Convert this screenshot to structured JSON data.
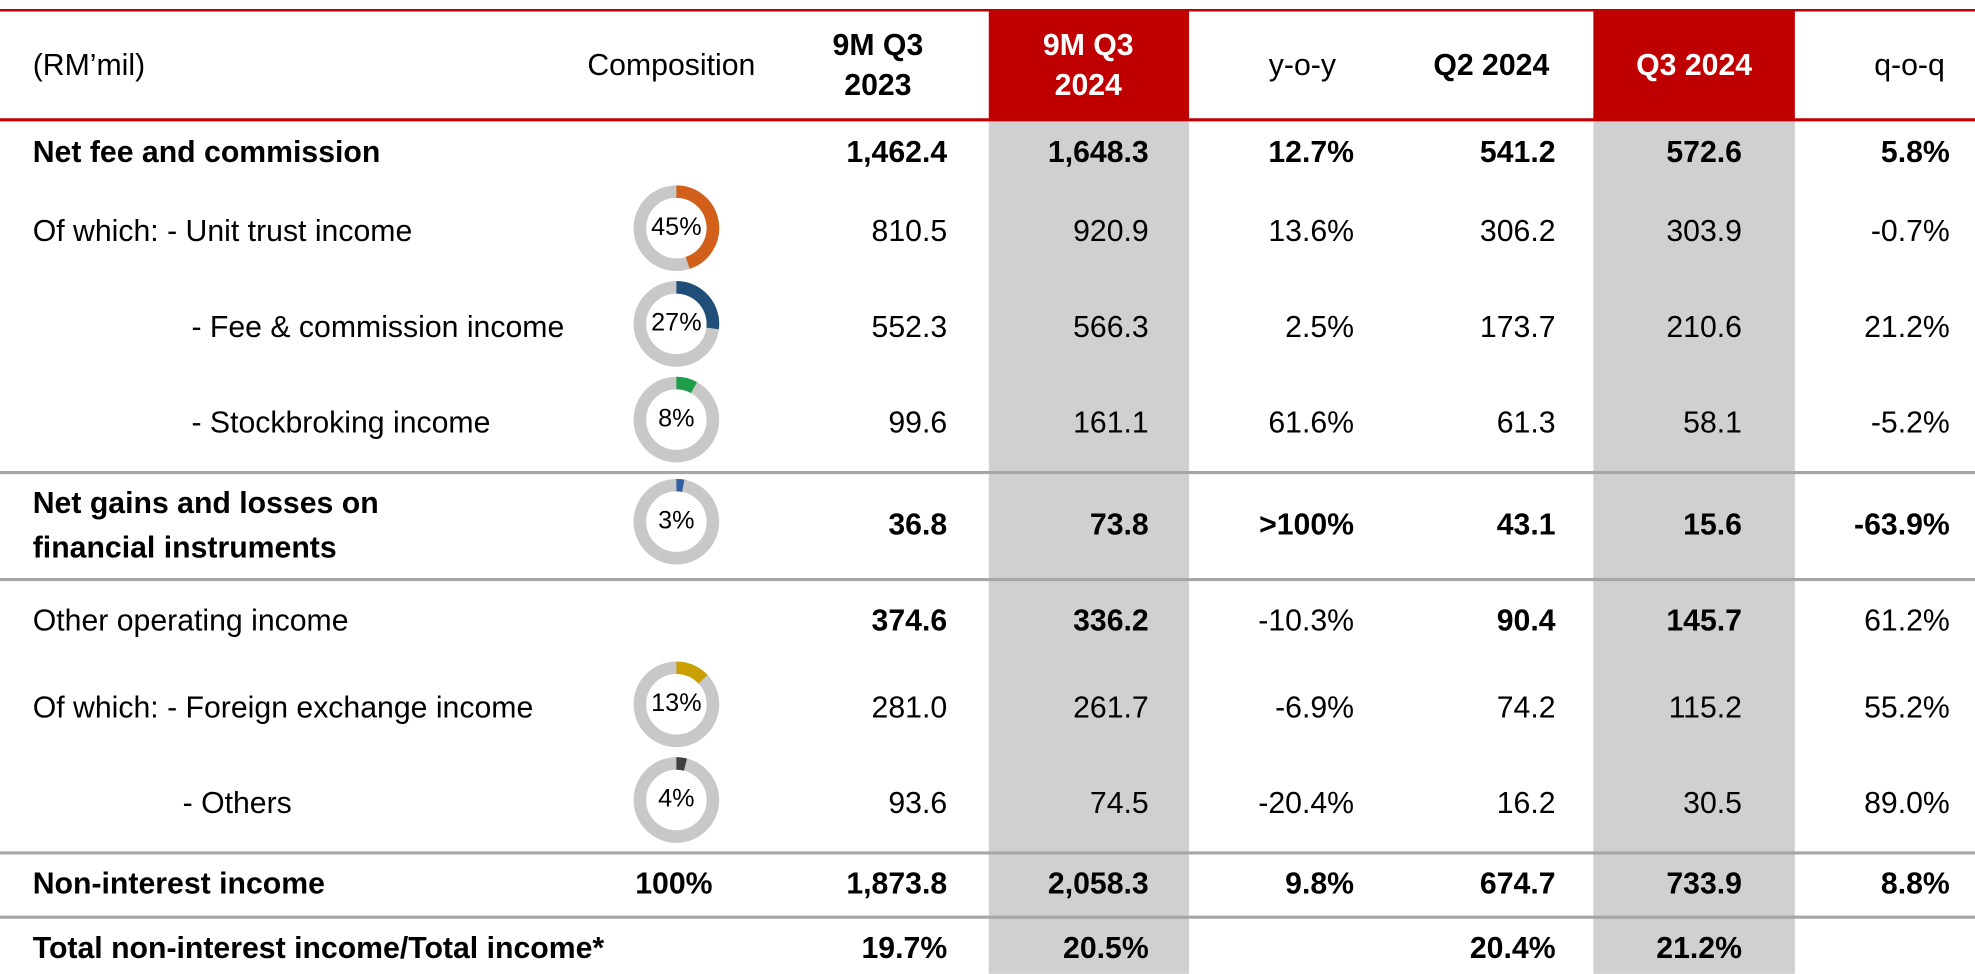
{
  "header": {
    "unit": "(RM’mil)",
    "composition": "Composition",
    "columns": [
      [
        "9M Q3",
        "2023"
      ],
      [
        "9M Q3",
        "2024"
      ],
      [
        "y-o-y"
      ],
      [
        "Q2 2024"
      ],
      [
        "Q3 2024"
      ],
      [
        "q-o-q"
      ]
    ]
  },
  "rows": [
    {
      "label": [
        "Net fee and commission"
      ],
      "values": [
        "1,462.4",
        "1,648.3",
        "12.7%",
        "541.2",
        "572.6",
        "5.8%"
      ]
    },
    {
      "label": [
        "Of which:  - Unit trust income"
      ],
      "composition": {
        "value": 45,
        "label": "45%",
        "color": "#d2601a"
      },
      "values": [
        "810.5",
        "920.9",
        "13.6%",
        "306.2",
        "303.9",
        "-0.7%"
      ]
    },
    {
      "label": [
        "- Fee & commission income"
      ],
      "composition": {
        "value": 27,
        "label": "27%",
        "color": "#1f4e79"
      },
      "values": [
        "552.3",
        "566.3",
        "2.5%",
        "173.7",
        "210.6",
        "21.2%"
      ]
    },
    {
      "label": [
        "- Stockbroking income"
      ],
      "composition": {
        "value": 8,
        "label": "8%",
        "color": "#1e9e4a"
      },
      "values": [
        "99.6",
        "161.1",
        "61.6%",
        "61.3",
        "58.1",
        "-5.2%"
      ]
    },
    {
      "label": [
        "Net gains and losses on",
        "financial instruments"
      ],
      "composition": {
        "value": 3,
        "label": "3%",
        "color": "#2e5f9e"
      },
      "values": [
        "36.8",
        "73.8",
        ">100%",
        "43.1",
        "15.6",
        "-63.9%"
      ]
    },
    {
      "label": [
        "Other operating income"
      ],
      "values": [
        "374.6",
        "336.2",
        "-10.3%",
        "90.4",
        "145.7",
        "61.2%"
      ]
    },
    {
      "label": [
        "Of which: - Foreign exchange income"
      ],
      "composition": {
        "value": 13,
        "label": "13%",
        "color": "#c9a000"
      },
      "values": [
        "281.0",
        "261.7",
        "-6.9%",
        "74.2",
        "115.2",
        "55.2%"
      ]
    },
    {
      "label": [
        "- Others"
      ],
      "composition": {
        "value": 4,
        "label": "4%",
        "color": "#404040"
      },
      "values": [
        "93.6",
        "74.5",
        "-20.4%",
        "16.2",
        "30.5",
        "89.0%"
      ]
    },
    {
      "label": [
        "Non-interest income"
      ],
      "composition": "100%",
      "values": [
        "1,873.8",
        "2,058.3",
        "9.8%",
        "674.7",
        "733.9",
        "8.8%"
      ]
    },
    {
      "label": [
        "Total non-interest income/Total income*"
      ],
      "values": [
        "19.7%",
        "20.5%",
        null,
        "20.4%",
        "21.2%",
        null
      ]
    }
  ]
}
